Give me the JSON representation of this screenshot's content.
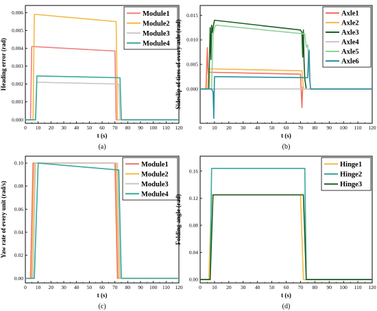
{
  "chart_data": [
    {
      "panel_label": "(a)",
      "type": "line",
      "xlabel": "t (s)",
      "ylabel": "Heading error (rad)",
      "xlim": [
        0,
        120
      ],
      "ylim": [
        -0.0002,
        0.0064
      ],
      "xticks": [
        0,
        10,
        20,
        30,
        40,
        50,
        60,
        70,
        80,
        90,
        100,
        110,
        120
      ],
      "yticks": [
        0.0,
        0.001,
        0.002,
        0.003,
        0.004,
        0.005,
        0.006
      ],
      "ytick_labels": [
        "0.000",
        "0.001",
        "0.002",
        "0.003",
        "0.004",
        "0.005",
        "0.006"
      ],
      "legend_position": "top-right",
      "series": [
        {
          "name": "Module1",
          "color": "#f08080",
          "x": [
            0,
            4,
            5,
            6,
            70,
            71,
            72,
            120
          ],
          "y": [
            0,
            0,
            0.0041,
            0.0041,
            0.00385,
            0,
            0,
            0
          ]
        },
        {
          "name": "Module2",
          "color": "#f5b942",
          "x": [
            0,
            6,
            7,
            8,
            71,
            72,
            73,
            120
          ],
          "y": [
            0,
            0,
            0.0059,
            0.0059,
            0.0055,
            0,
            0,
            0
          ]
        },
        {
          "name": "Module3",
          "color": "#c8c8c8",
          "x": [
            0,
            8,
            9,
            10,
            73,
            74,
            75,
            120
          ],
          "y": [
            0,
            0,
            0.0021,
            0.0021,
            0.002,
            0,
            0,
            0
          ]
        },
        {
          "name": "Module4",
          "color": "#3aa79a",
          "x": [
            0,
            8,
            9,
            10,
            74,
            75,
            76,
            120
          ],
          "y": [
            0,
            0,
            0.00245,
            0.00245,
            0.00235,
            0,
            0,
            0
          ]
        }
      ]
    },
    {
      "panel_label": "(b)",
      "type": "line",
      "xlabel": "t (s)",
      "ylabel": "Sideslip of tires of every axle (rad)",
      "xlim": [
        0,
        120
      ],
      "ylim": [
        -0.007,
        0.017
      ],
      "xticks": [
        0,
        10,
        20,
        30,
        40,
        50,
        60,
        70,
        80,
        90,
        100,
        110,
        120
      ],
      "yticks": [
        0.0,
        0.005,
        0.01,
        0.015
      ],
      "ytick_labels": [
        "0.000",
        "0.005",
        "0.010",
        "0.015"
      ],
      "legend_position": "top-right",
      "series": [
        {
          "name": "Axle1",
          "color": "#f07060",
          "x": [
            0,
            4,
            5,
            5.5,
            6,
            7,
            70,
            71,
            71.5,
            72,
            73,
            120
          ],
          "y": [
            0,
            0,
            0.0084,
            0.003,
            0.0034,
            0.0034,
            0.003,
            -0.0038,
            0.0004,
            0,
            0,
            0
          ]
        },
        {
          "name": "Axle2",
          "color": "#f5b942",
          "x": [
            0,
            5,
            6,
            7,
            71,
            72,
            73,
            120
          ],
          "y": [
            0,
            0,
            0.0041,
            0.0041,
            0.0037,
            0,
            0,
            0
          ]
        },
        {
          "name": "Axle3",
          "color": "#1b5e20",
          "x": [
            0,
            6,
            7,
            7.5,
            8,
            8.5,
            9,
            10,
            70,
            71,
            71.5,
            72,
            72.5,
            73,
            74,
            120
          ],
          "y": [
            0,
            0,
            0.0125,
            0.006,
            0.013,
            0.0115,
            0.0125,
            0.014,
            0.012,
            0.0115,
            0.0065,
            0.012,
            0.0055,
            0.002,
            0,
            0
          ]
        },
        {
          "name": "Axle4",
          "color": "#c8c8c8",
          "x": [
            0,
            120
          ],
          "y": [
            0,
            0
          ]
        },
        {
          "name": "Axle5",
          "color": "#8fd19e",
          "x": [
            0,
            8,
            9,
            10,
            11,
            73,
            74,
            75,
            76,
            77,
            120
          ],
          "y": [
            0,
            0,
            0.011,
            0.0125,
            0.013,
            0.0112,
            0.0085,
            0.009,
            0.0035,
            0,
            0
          ]
        },
        {
          "name": "Axle6",
          "color": "#2a8fa0",
          "x": [
            0,
            8,
            9,
            9.5,
            10,
            11,
            75,
            75.5,
            76,
            76.5,
            77,
            120
          ],
          "y": [
            0,
            0,
            -0.0006,
            -0.006,
            0.0025,
            0.0025,
            0.0023,
            0.006,
            0.0079,
            0.002,
            0,
            0
          ]
        }
      ]
    },
    {
      "panel_label": "(c)",
      "type": "line",
      "xlabel": "t (s)",
      "ylabel": "Yaw rate of every unit (rad/s)",
      "xlim": [
        0,
        120
      ],
      "ylim": [
        -0.004,
        0.106
      ],
      "xticks": [
        0,
        10,
        20,
        30,
        40,
        50,
        60,
        70,
        80,
        90,
        100,
        110,
        120
      ],
      "yticks": [
        0.0,
        0.02,
        0.04,
        0.06,
        0.08,
        0.1
      ],
      "ytick_labels": [
        "0.00",
        "0.02",
        "0.04",
        "0.06",
        "0.08",
        "0.10"
      ],
      "legend_position": "top-right",
      "series": [
        {
          "name": "Module1",
          "color": "#f07060",
          "x": [
            0,
            4,
            6,
            70,
            72,
            120
          ],
          "y": [
            0,
            0,
            0.1,
            0.1,
            0,
            0
          ]
        },
        {
          "name": "Module2",
          "color": "#f5b942",
          "x": [
            0,
            5,
            7,
            71,
            73,
            120
          ],
          "y": [
            0,
            0,
            0.1,
            0.1,
            0,
            0
          ]
        },
        {
          "name": "Module3",
          "color": "#c8c8c8",
          "x": [
            0,
            6,
            8,
            72,
            74,
            120
          ],
          "y": [
            0,
            0,
            0.1,
            0.1,
            0,
            0
          ]
        },
        {
          "name": "Module4",
          "color": "#3aa79a",
          "x": [
            0,
            7,
            10,
            73,
            75,
            120
          ],
          "y": [
            0,
            0,
            0.1,
            0.094,
            0,
            0
          ]
        }
      ]
    },
    {
      "panel_label": "(d)",
      "type": "line",
      "xlabel": "t (s)",
      "ylabel": "Folding angle (rad)",
      "xlim": [
        0,
        120
      ],
      "ylim": [
        -0.005,
        0.182
      ],
      "xticks": [
        0,
        10,
        20,
        30,
        40,
        50,
        60,
        70,
        80,
        90,
        100,
        110,
        120
      ],
      "yticks": [
        0.0,
        0.04,
        0.08,
        0.12,
        0.16
      ],
      "ytick_labels": [
        "0.00",
        "0.04",
        "0.08",
        "0.12",
        "0.16"
      ],
      "legend_position": "top-right",
      "series": [
        {
          "name": "Hinge1",
          "color": "#f5b942",
          "x": [
            0,
            6,
            8,
            70,
            72,
            120
          ],
          "y": [
            0,
            0,
            0.125,
            0.125,
            0,
            0
          ]
        },
        {
          "name": "Hinge2",
          "color": "#3aa79a",
          "x": [
            0,
            7,
            8,
            73,
            74,
            120
          ],
          "y": [
            0,
            0,
            0.164,
            0.164,
            0,
            0
          ]
        },
        {
          "name": "Hinge3",
          "color": "#1b5e20",
          "x": [
            0,
            7,
            9,
            72,
            74,
            120
          ],
          "y": [
            0,
            0,
            0.125,
            0.125,
            0,
            0
          ]
        }
      ]
    }
  ]
}
